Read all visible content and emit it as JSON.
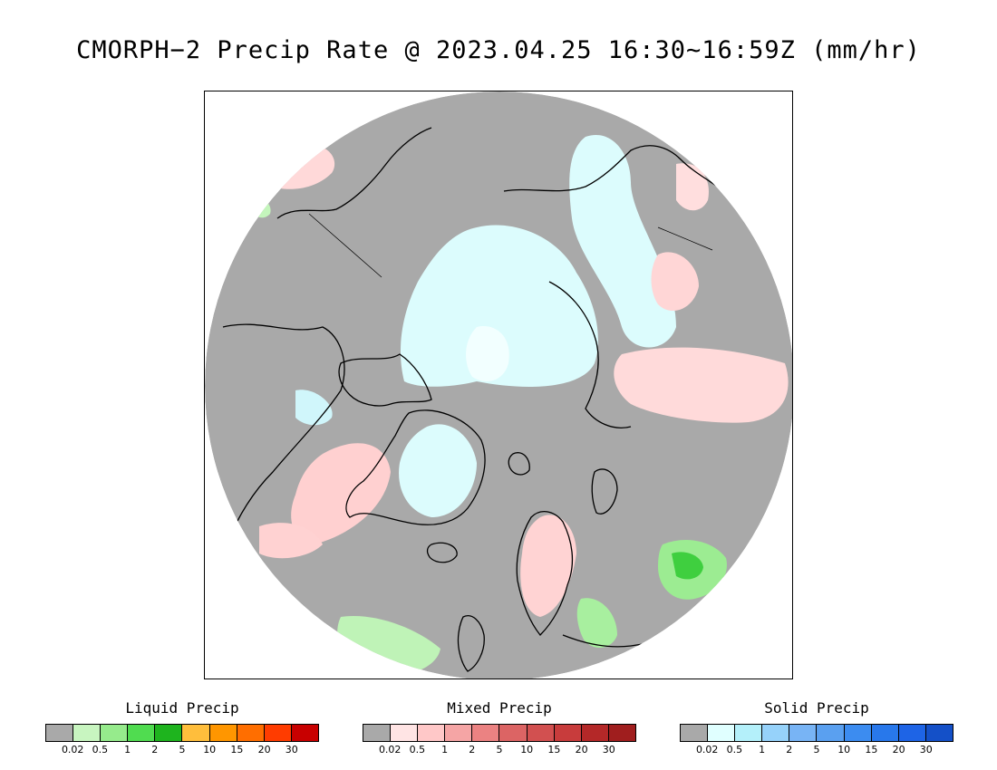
{
  "title": "CMORPH−2 Precip Rate @ 2023.04.25 16:30~16:59Z (mm/hr)",
  "map": {
    "projection": "north-polar-stereographic",
    "background_color": "#a9a9a9",
    "coastline_color": "#000000",
    "frame_background": "#ffffff"
  },
  "legends": [
    {
      "id": "liquid",
      "title": "Liquid Precip",
      "colors": [
        "#a9a9a9",
        "#c8f5c0",
        "#96eb8c",
        "#50dc50",
        "#1eb41e",
        "#ffbe3c",
        "#ff9600",
        "#ff6e00",
        "#ff3c00",
        "#c80000"
      ],
      "ticks": [
        "0.02",
        "0.5",
        "1",
        "2",
        "5",
        "10",
        "15",
        "20",
        "30"
      ]
    },
    {
      "id": "mixed",
      "title": "Mixed Precip",
      "colors": [
        "#a9a9a9",
        "#ffe4e4",
        "#ffc8c8",
        "#f5a5a5",
        "#eb8282",
        "#dc6464",
        "#d25050",
        "#c83c3c",
        "#b42828",
        "#a01e1e"
      ],
      "ticks": [
        "0.02",
        "0.5",
        "1",
        "2",
        "5",
        "10",
        "15",
        "20",
        "30"
      ]
    },
    {
      "id": "solid",
      "title": "Solid Precip",
      "colors": [
        "#a9a9a9",
        "#e0ffff",
        "#b4f0fa",
        "#96d2fa",
        "#78b4f5",
        "#5aa0f0",
        "#3c8cf0",
        "#2878eb",
        "#1e64e6",
        "#1450c8"
      ],
      "ticks": [
        "0.02",
        "0.5",
        "1",
        "2",
        "5",
        "10",
        "15",
        "20",
        "30"
      ]
    }
  ]
}
